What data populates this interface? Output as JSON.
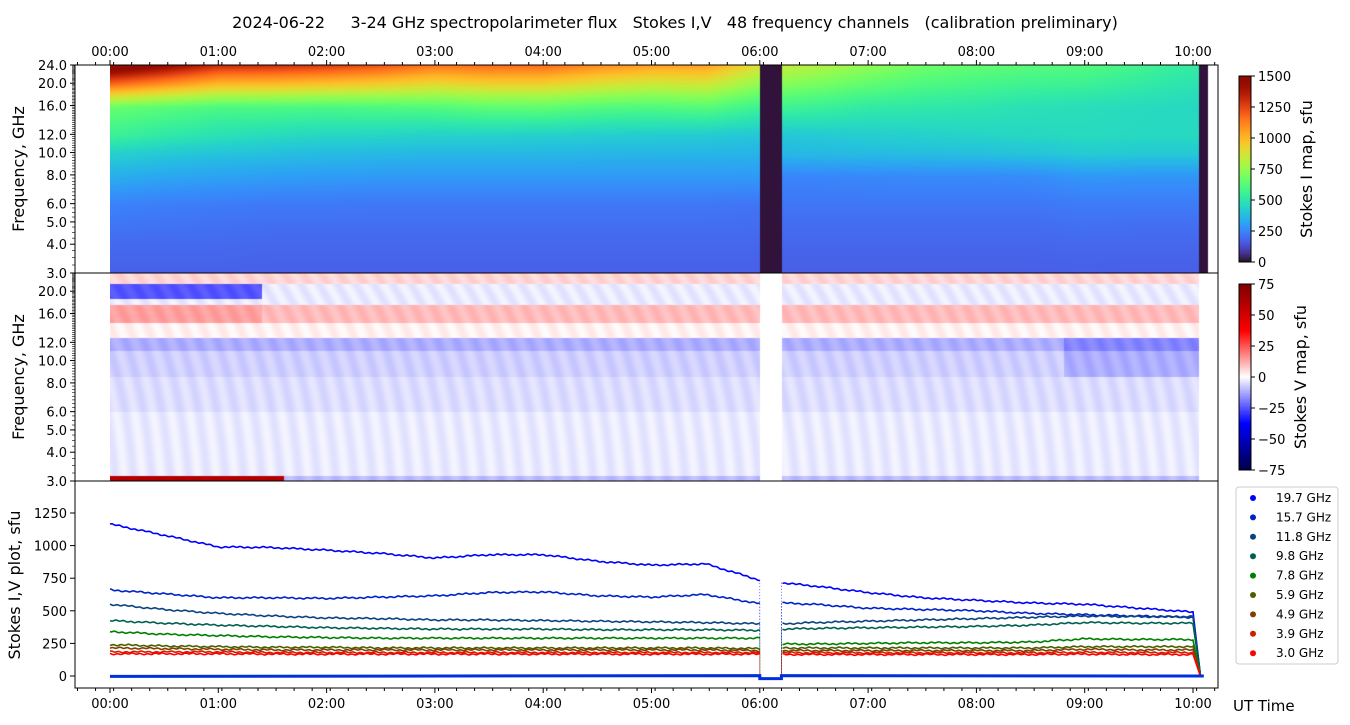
{
  "title": "2024-06-22     3-24 GHz spectropolarimeter flux   Stokes I,V   48 frequency channels   (calibration preliminary)",
  "chart_data": [
    {
      "type": "heatmap",
      "name": "Stokes I map",
      "ylabel": "Frequency, GHz",
      "yscale": "log",
      "ylim": [
        3.0,
        24.0
      ],
      "yticks": [
        "24.0",
        "20.0",
        "16.0",
        "12.0",
        "10.0",
        "8.0",
        "6.0",
        "5.0",
        "4.0",
        "3.0"
      ],
      "xticks": [
        "00:00",
        "01:00",
        "02:00",
        "03:00",
        "04:00",
        "05:00",
        "06:00",
        "07:00",
        "08:00",
        "09:00",
        "10:00"
      ],
      "colorbar": {
        "label": "Stokes I map, sfu",
        "range": [
          0,
          1500
        ],
        "ticks": [
          "1500",
          "1250",
          "1000",
          "750",
          "500",
          "250",
          "0"
        ],
        "cmap": "turbo"
      },
      "data_gaps_hours": [
        [
          6.0,
          6.2
        ],
        [
          10.05,
          10.13
        ]
      ]
    },
    {
      "type": "heatmap",
      "name": "Stokes V map",
      "ylabel": "Frequency, GHz",
      "yscale": "log",
      "ylim": [
        3.0,
        24.0
      ],
      "yticks": [
        "20.0",
        "16.0",
        "12.0",
        "10.0",
        "8.0",
        "6.0",
        "5.0",
        "4.0",
        "3.0"
      ],
      "colorbar": {
        "label": "Stokes V map, sfu",
        "range": [
          -75,
          75
        ],
        "ticks": [
          "75",
          "50",
          "25",
          "0",
          "−25",
          "−50",
          "−75"
        ],
        "cmap": "seismic"
      }
    },
    {
      "type": "line",
      "name": "Stokes I,V plot",
      "ylabel": "Stokes I,V plot, sfu",
      "xlabel": "UT Time",
      "ylim": [
        -90,
        1495
      ],
      "yticks": [
        "0",
        "250",
        "500",
        "750",
        "1000",
        "1250"
      ],
      "xticks": [
        "00:00",
        "01:00",
        "02:00",
        "03:00",
        "04:00",
        "05:00",
        "06:00",
        "07:00",
        "08:00",
        "09:00",
        "10:00"
      ],
      "x_hours": [
        0,
        0.5,
        1,
        1.5,
        2,
        2.5,
        3,
        3.5,
        4,
        4.5,
        5,
        5.5,
        6.0,
        6.2,
        6.5,
        7,
        7.5,
        8,
        8.5,
        9,
        9.5,
        10.0
      ],
      "gap_hours": [
        6.0,
        6.2
      ],
      "legend_position": "right",
      "series": [
        {
          "name": "19.7 GHz",
          "color": "#0000ff",
          "freq": 19.7,
          "values": [
            1165,
            1080,
            990,
            985,
            965,
            940,
            905,
            930,
            930,
            880,
            850,
            860,
            735,
            715,
            690,
            640,
            600,
            580,
            560,
            550,
            520,
            490
          ]
        },
        {
          "name": "15.7 GHz",
          "color": "#0022cc",
          "freq": 15.7,
          "values": [
            660,
            630,
            600,
            600,
            595,
            605,
            615,
            640,
            645,
            615,
            605,
            625,
            555,
            560,
            550,
            520,
            510,
            500,
            480,
            470,
            460,
            450
          ]
        },
        {
          "name": "11.8 GHz",
          "color": "#0a4480",
          "freq": 11.8,
          "values": [
            550,
            510,
            480,
            460,
            445,
            440,
            430,
            430,
            425,
            420,
            415,
            410,
            400,
            400,
            410,
            420,
            430,
            440,
            450,
            460,
            455,
            455
          ]
        },
        {
          "name": "9.8 GHz",
          "color": "#006050",
          "freq": 9.8,
          "values": [
            425,
            405,
            390,
            380,
            370,
            365,
            360,
            360,
            360,
            355,
            355,
            355,
            350,
            360,
            365,
            370,
            375,
            380,
            390,
            410,
            405,
            405
          ]
        },
        {
          "name": "7.8 GHz",
          "color": "#008000",
          "freq": 7.8,
          "values": [
            340,
            320,
            310,
            300,
            295,
            290,
            290,
            290,
            290,
            290,
            290,
            290,
            290,
            245,
            245,
            250,
            255,
            255,
            260,
            285,
            280,
            280
          ]
        },
        {
          "name": "5.9 GHz",
          "color": "#4a6000",
          "freq": 5.9,
          "values": [
            240,
            230,
            225,
            220,
            220,
            215,
            215,
            215,
            215,
            215,
            215,
            215,
            210,
            215,
            215,
            215,
            215,
            215,
            215,
            225,
            225,
            225
          ]
        },
        {
          "name": "4.9 GHz",
          "color": "#804000",
          "freq": 4.9,
          "values": [
            215,
            210,
            205,
            200,
            200,
            200,
            200,
            200,
            200,
            200,
            200,
            200,
            195,
            195,
            195,
            195,
            195,
            195,
            195,
            205,
            200,
            200
          ]
        },
        {
          "name": "3.9 GHz",
          "color": "#cc2000",
          "freq": 3.9,
          "values": [
            185,
            185,
            185,
            180,
            180,
            180,
            180,
            180,
            180,
            180,
            180,
            180,
            180,
            178,
            178,
            178,
            178,
            178,
            178,
            182,
            180,
            180
          ]
        },
        {
          "name": "3.0 GHz",
          "color": "#ff0000",
          "freq": 3.0,
          "values": [
            170,
            170,
            170,
            168,
            168,
            168,
            168,
            168,
            168,
            168,
            168,
            168,
            168,
            165,
            165,
            165,
            165,
            165,
            165,
            168,
            165,
            165
          ]
        }
      ],
      "stokes_v_series": {
        "color": "#0030dd",
        "values_approx": 0
      }
    }
  ]
}
